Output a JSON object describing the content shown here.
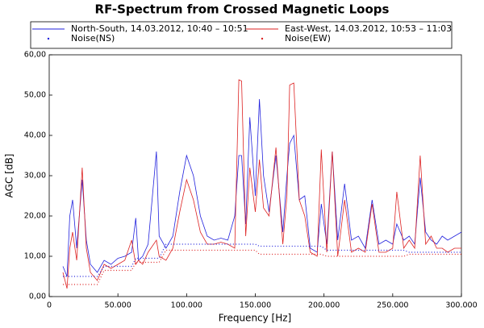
{
  "chart_data": {
    "type": "line",
    "title": "RF-Spectrum from Crossed Magnetic Loops",
    "x_label": "Frequency [Hz]",
    "y_label": "AGC [dB]",
    "xlim": [
      0,
      300000
    ],
    "ylim": [
      0,
      60
    ],
    "xticks": [
      {
        "value": 0,
        "label": "0"
      },
      {
        "value": 50000,
        "label": "50.000"
      },
      {
        "value": 100000,
        "label": "100.000"
      },
      {
        "value": 150000,
        "label": "150.000"
      },
      {
        "value": 200000,
        "label": "200.000"
      },
      {
        "value": 250000,
        "label": "250.000"
      },
      {
        "value": 300000,
        "label": "300.000"
      }
    ],
    "yticks": [
      {
        "value": 0,
        "label": "0,00"
      },
      {
        "value": 10,
        "label": "10,00"
      },
      {
        "value": 20,
        "label": "20,00"
      },
      {
        "value": 30,
        "label": "30,00"
      },
      {
        "value": 40,
        "label": "40,00"
      },
      {
        "value": 50,
        "label": "50,00"
      },
      {
        "value": 60,
        "label": "60,00"
      }
    ],
    "x": [
      10000,
      13000,
      15000,
      17000,
      20000,
      24000,
      27000,
      30000,
      35000,
      40000,
      45000,
      50000,
      55000,
      60000,
      63000,
      65000,
      68000,
      72000,
      78000,
      80000,
      85000,
      90000,
      95000,
      100000,
      105000,
      110000,
      115000,
      120000,
      125000,
      130000,
      135000,
      138000,
      140000,
      143000,
      146000,
      150000,
      153000,
      156000,
      160000,
      165000,
      170000,
      173000,
      175000,
      178000,
      182000,
      186000,
      190000,
      195000,
      198000,
      202000,
      206000,
      210000,
      215000,
      220000,
      225000,
      230000,
      235000,
      240000,
      245000,
      250000,
      253000,
      258000,
      262000,
      266000,
      270000,
      274000,
      278000,
      282000,
      286000,
      290000,
      295000,
      300000
    ],
    "series": [
      {
        "name": "North-South, 14.03.2012, 10:40 – 10:51",
        "color": "#2222dd",
        "line_style": "solid",
        "values": [
          7.5,
          5,
          20,
          24,
          12,
          29,
          14,
          8,
          6,
          9,
          8,
          9.5,
          10,
          11,
          19.5,
          9,
          10,
          13,
          36,
          15,
          12,
          15,
          26,
          35,
          30,
          20,
          15,
          14,
          14.5,
          14,
          20,
          35,
          35,
          18,
          44.5,
          25,
          49,
          30,
          21,
          35,
          16,
          30,
          38,
          40,
          24,
          25,
          12,
          11,
          23,
          13,
          36,
          14,
          28,
          14,
          15,
          12,
          24,
          13,
          14,
          13,
          18,
          14,
          15,
          13,
          29.5,
          16,
          14,
          13,
          15,
          14,
          15,
          16
        ]
      },
      {
        "name": "East-West, 14.03.2012, 10:53 – 11:03",
        "color": "#dd2222",
        "line_style": "solid",
        "values": [
          6,
          2,
          12,
          16,
          9,
          32,
          12,
          6,
          4,
          8,
          7,
          8,
          9,
          14,
          8,
          9,
          8,
          11,
          14,
          10,
          9,
          12,
          21,
          29,
          24,
          16,
          13,
          13,
          13.5,
          13,
          12,
          53.8,
          53.5,
          15,
          32,
          21,
          34,
          22,
          20,
          37,
          13,
          25,
          52.5,
          53,
          24,
          20,
          11,
          10,
          36.5,
          11,
          36,
          10,
          24,
          11,
          12,
          11,
          23,
          11,
          11,
          12,
          26,
          12,
          14,
          12,
          35,
          13,
          15,
          12,
          12,
          11,
          12,
          12
        ]
      },
      {
        "name": "Noise(NS)",
        "color": "#2222dd",
        "line_style": "dotted",
        "values": [
          5,
          5,
          5,
          5,
          5,
          5,
          5,
          5,
          5,
          7.5,
          7.5,
          7.5,
          7.5,
          7.5,
          9.5,
          9.5,
          9.5,
          9.5,
          9.5,
          9.5,
          13,
          13,
          13,
          13,
          13,
          13,
          13,
          13,
          13,
          13,
          13,
          13,
          13,
          13,
          13,
          13,
          12.5,
          12.5,
          12.5,
          12.5,
          12.5,
          12.5,
          12.5,
          12.5,
          12.5,
          12.5,
          12.5,
          12.5,
          12.5,
          11.5,
          11.5,
          11.5,
          11.5,
          11.5,
          11.5,
          11.5,
          11.5,
          11.5,
          11.5,
          11.5,
          11.5,
          11.5,
          11,
          11,
          11,
          11,
          11,
          11,
          11,
          11,
          11,
          11
        ]
      },
      {
        "name": "Noise(EW)",
        "color": "#dd2222",
        "line_style": "dotted",
        "values": [
          3,
          3,
          3,
          3,
          3,
          3,
          3,
          3,
          3,
          6.5,
          6.5,
          6.5,
          6.5,
          6.5,
          8.5,
          8.5,
          8.5,
          8.5,
          8.5,
          8.5,
          11.5,
          11.5,
          11.5,
          11.5,
          11.5,
          11.5,
          11.5,
          11.5,
          11.5,
          11.5,
          11.5,
          11.5,
          11.5,
          11.5,
          11.5,
          11.5,
          10.5,
          10.5,
          10.5,
          10.5,
          10.5,
          10.5,
          10.5,
          10.5,
          10.5,
          10.5,
          10.5,
          10.5,
          10.5,
          10,
          10,
          10,
          10,
          10,
          10,
          10,
          10,
          10,
          10,
          10,
          10,
          10,
          10.5,
          10.5,
          10.5,
          10.5,
          10.5,
          10.5,
          10.5,
          10.5,
          10.5,
          10.5
        ]
      }
    ]
  }
}
